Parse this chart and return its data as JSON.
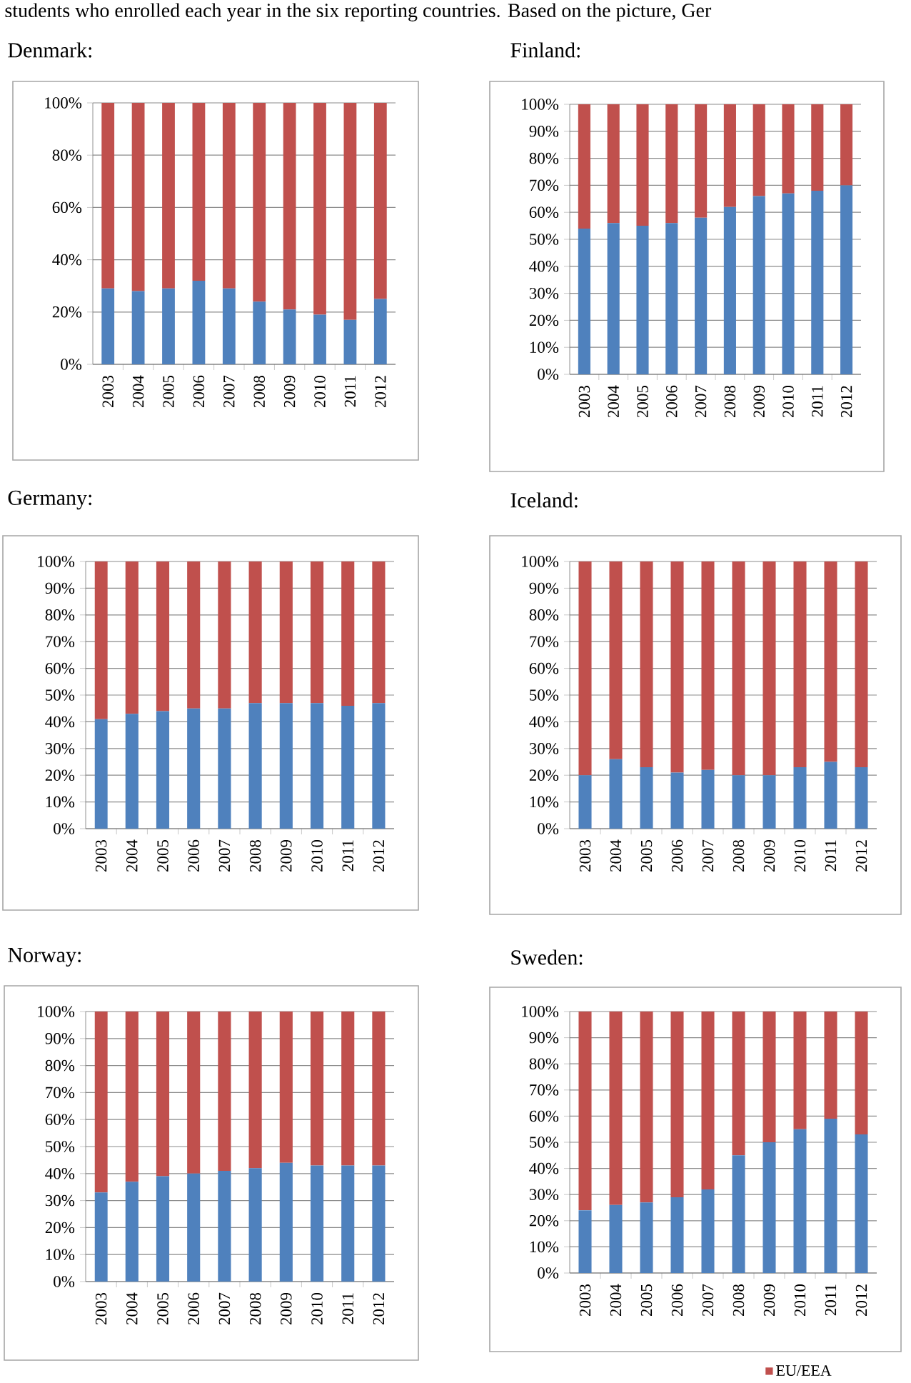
{
  "chart_data": [
    {
      "type": "bar",
      "title": "Denmark:",
      "annotations": [
        "students who enrolled each year in the six reporting countries. Based on the picture, Ger"
      ],
      "stacked": true,
      "grid": "y",
      "categories": [
        "2003",
        "2004",
        "2005",
        "2006",
        "2007",
        "2008",
        "2009",
        "2010",
        "2011",
        "2012"
      ],
      "ylim": [
        0,
        100
      ],
      "yticks": [
        {
          "value": 0,
          "label": "0%"
        },
        {
          "value": 20,
          "label": "20%"
        },
        {
          "value": 40,
          "label": "40%"
        },
        {
          "value": 60,
          "label": "60%"
        },
        {
          "value": 80,
          "label": "80%"
        },
        {
          "value": 100,
          "label": "100%"
        }
      ],
      "series": [
        {
          "color": "#4f81bd",
          "values": [
            29,
            28,
            29,
            32,
            29,
            24,
            21,
            19,
            17,
            25
          ]
        },
        {
          "color": "#c0504d",
          "values": [
            71,
            72,
            71,
            68,
            71,
            76,
            79,
            81,
            83,
            75
          ]
        }
      ]
    },
    {
      "type": "bar",
      "title": "Finland:",
      "stacked": true,
      "grid": "y",
      "categories": [
        "2003",
        "2004",
        "2005",
        "2006",
        "2007",
        "2008",
        "2009",
        "2010",
        "2011",
        "2012"
      ],
      "ylim": [
        0,
        100
      ],
      "yticks": [
        {
          "value": 0,
          "label": "0%"
        },
        {
          "value": 10,
          "label": "10%"
        },
        {
          "value": 20,
          "label": "20%"
        },
        {
          "value": 30,
          "label": "30%"
        },
        {
          "value": 40,
          "label": "40%"
        },
        {
          "value": 50,
          "label": "50%"
        },
        {
          "value": 60,
          "label": "60%"
        },
        {
          "value": 70,
          "label": "70%"
        },
        {
          "value": 80,
          "label": "80%"
        },
        {
          "value": 90,
          "label": "90%"
        },
        {
          "value": 100,
          "label": "100%"
        }
      ],
      "series": [
        {
          "color": "#4f81bd",
          "values": [
            54,
            56,
            55,
            56,
            58,
            62,
            66,
            67,
            68,
            70
          ]
        },
        {
          "color": "#c0504d",
          "values": [
            46,
            44,
            45,
            44,
            42,
            38,
            34,
            33,
            32,
            30
          ]
        }
      ]
    },
    {
      "type": "bar",
      "title": "Germany:",
      "stacked": true,
      "grid": "y",
      "categories": [
        "2003",
        "2004",
        "2005",
        "2006",
        "2007",
        "2008",
        "2009",
        "2010",
        "2011",
        "2012"
      ],
      "ylim": [
        0,
        100
      ],
      "yticks": [
        {
          "value": 0,
          "label": "0%"
        },
        {
          "value": 10,
          "label": "10%"
        },
        {
          "value": 20,
          "label": "20%"
        },
        {
          "value": 30,
          "label": "30%"
        },
        {
          "value": 40,
          "label": "40%"
        },
        {
          "value": 50,
          "label": "50%"
        },
        {
          "value": 60,
          "label": "60%"
        },
        {
          "value": 70,
          "label": "70%"
        },
        {
          "value": 80,
          "label": "80%"
        },
        {
          "value": 90,
          "label": "90%"
        },
        {
          "value": 100,
          "label": "100%"
        }
      ],
      "series": [
        {
          "color": "#4f81bd",
          "values": [
            41,
            43,
            44,
            45,
            45,
            47,
            47,
            47,
            46,
            47
          ]
        },
        {
          "color": "#c0504d",
          "values": [
            59,
            57,
            56,
            55,
            55,
            53,
            53,
            53,
            54,
            53
          ]
        }
      ]
    },
    {
      "type": "bar",
      "title": "Iceland:",
      "stacked": true,
      "grid": "y",
      "categories": [
        "2003",
        "2004",
        "2005",
        "2006",
        "2007",
        "2008",
        "2009",
        "2010",
        "2011",
        "2012"
      ],
      "ylim": [
        0,
        100
      ],
      "yticks": [
        {
          "value": 0,
          "label": "0%"
        },
        {
          "value": 10,
          "label": "10%"
        },
        {
          "value": 20,
          "label": "20%"
        },
        {
          "value": 30,
          "label": "30%"
        },
        {
          "value": 40,
          "label": "40%"
        },
        {
          "value": 50,
          "label": "50%"
        },
        {
          "value": 60,
          "label": "60%"
        },
        {
          "value": 70,
          "label": "70%"
        },
        {
          "value": 80,
          "label": "80%"
        },
        {
          "value": 90,
          "label": "90%"
        },
        {
          "value": 100,
          "label": "100%"
        }
      ],
      "series": [
        {
          "color": "#4f81bd",
          "values": [
            20,
            26,
            23,
            21,
            22,
            20,
            20,
            23,
            25,
            23
          ]
        },
        {
          "color": "#c0504d",
          "values": [
            80,
            74,
            77,
            79,
            78,
            80,
            80,
            77,
            75,
            77
          ]
        }
      ]
    },
    {
      "type": "bar",
      "title": "Norway:",
      "stacked": true,
      "grid": "y",
      "categories": [
        "2003",
        "2004",
        "2005",
        "2006",
        "2007",
        "2008",
        "2009",
        "2010",
        "2011",
        "2012"
      ],
      "ylim": [
        0,
        100
      ],
      "yticks": [
        {
          "value": 0,
          "label": "0%"
        },
        {
          "value": 10,
          "label": "10%"
        },
        {
          "value": 20,
          "label": "20%"
        },
        {
          "value": 30,
          "label": "30%"
        },
        {
          "value": 40,
          "label": "40%"
        },
        {
          "value": 50,
          "label": "50%"
        },
        {
          "value": 60,
          "label": "60%"
        },
        {
          "value": 70,
          "label": "70%"
        },
        {
          "value": 80,
          "label": "80%"
        },
        {
          "value": 90,
          "label": "90%"
        },
        {
          "value": 100,
          "label": "100%"
        }
      ],
      "series": [
        {
          "color": "#4f81bd",
          "values": [
            33,
            37,
            39,
            40,
            41,
            42,
            44,
            43,
            43,
            43
          ]
        },
        {
          "color": "#c0504d",
          "values": [
            67,
            63,
            61,
            60,
            59,
            58,
            56,
            57,
            57,
            57
          ]
        }
      ]
    },
    {
      "type": "bar",
      "title": "Sweden:",
      "stacked": true,
      "grid": "y",
      "legend": "bottom",
      "categories": [
        "2003",
        "2004",
        "2005",
        "2006",
        "2007",
        "2008",
        "2009",
        "2010",
        "2011",
        "2012"
      ],
      "ylim": [
        0,
        100
      ],
      "yticks": [
        {
          "value": 0,
          "label": "0%"
        },
        {
          "value": 10,
          "label": "10%"
        },
        {
          "value": 20,
          "label": "20%"
        },
        {
          "value": 30,
          "label": "30%"
        },
        {
          "value": 40,
          "label": "40%"
        },
        {
          "value": 50,
          "label": "50%"
        },
        {
          "value": 60,
          "label": "60%"
        },
        {
          "value": 70,
          "label": "70%"
        },
        {
          "value": 80,
          "label": "80%"
        },
        {
          "value": 90,
          "label": "90%"
        },
        {
          "value": 100,
          "label": "100%"
        }
      ],
      "series": [
        {
          "color": "#4f81bd",
          "values": [
            24,
            26,
            27,
            29,
            32,
            45,
            50,
            55,
            59,
            53
          ]
        },
        {
          "name": "EU/EEA",
          "color": "#c0504d",
          "values": [
            76,
            74,
            73,
            71,
            68,
            55,
            50,
            45,
            41,
            47
          ]
        }
      ]
    }
  ]
}
